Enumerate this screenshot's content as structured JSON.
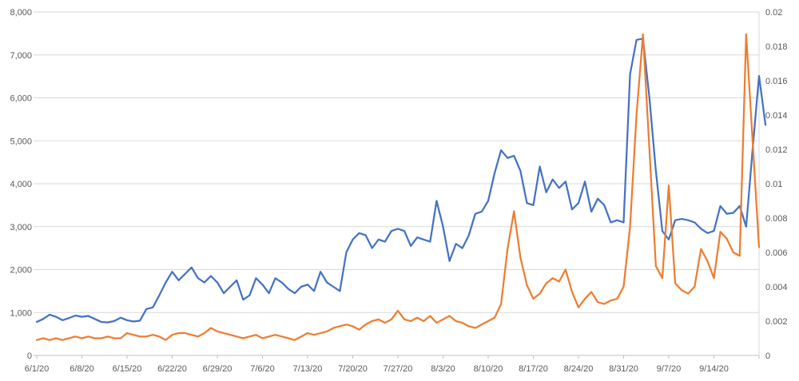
{
  "clipped_title_glyphs": "▄▄▄▄ ▄▄▄▄▄▄ ▄▄▄▄▄ ▄▄ ▄▄▄▄▄▄ ▄▄▄",
  "colors": {
    "blue_series": "#4472C4",
    "orange_series": "#ED7D31",
    "gridline": "#D9D9D9",
    "axis_line": "#BFBFBF",
    "axis_text": "#595959",
    "background": "#FFFFFF"
  },
  "chart_data": {
    "type": "line",
    "title": "",
    "legend": "none",
    "grid": "horizontal-major",
    "x_tick_labels": [
      "6/1/20",
      "6/8/20",
      "6/15/20",
      "6/22/20",
      "6/29/20",
      "7/6/20",
      "7/13/20",
      "7/20/20",
      "7/27/20",
      "8/3/20",
      "8/10/20",
      "8/17/20",
      "8/24/20",
      "8/31/20",
      "9/7/20",
      "9/14/20"
    ],
    "x_dates": [
      "6/1/20",
      "6/2/20",
      "6/3/20",
      "6/4/20",
      "6/5/20",
      "6/6/20",
      "6/7/20",
      "6/8/20",
      "6/9/20",
      "6/10/20",
      "6/11/20",
      "6/12/20",
      "6/13/20",
      "6/14/20",
      "6/15/20",
      "6/16/20",
      "6/17/20",
      "6/18/20",
      "6/19/20",
      "6/20/20",
      "6/21/20",
      "6/22/20",
      "6/23/20",
      "6/24/20",
      "6/25/20",
      "6/26/20",
      "6/27/20",
      "6/28/20",
      "6/29/20",
      "6/30/20",
      "7/1/20",
      "7/2/20",
      "7/3/20",
      "7/4/20",
      "7/5/20",
      "7/6/20",
      "7/7/20",
      "7/8/20",
      "7/9/20",
      "7/10/20",
      "7/11/20",
      "7/12/20",
      "7/13/20",
      "7/14/20",
      "7/15/20",
      "7/16/20",
      "7/17/20",
      "7/18/20",
      "7/19/20",
      "7/20/20",
      "7/21/20",
      "7/22/20",
      "7/23/20",
      "7/24/20",
      "7/25/20",
      "7/26/20",
      "7/27/20",
      "7/28/20",
      "7/29/20",
      "7/30/20",
      "7/31/20",
      "8/1/20",
      "8/2/20",
      "8/3/20",
      "8/4/20",
      "8/5/20",
      "8/6/20",
      "8/7/20",
      "8/8/20",
      "8/9/20",
      "8/10/20",
      "8/11/20",
      "8/12/20",
      "8/13/20",
      "8/14/20",
      "8/15/20",
      "8/16/20",
      "8/17/20",
      "8/18/20",
      "8/19/20",
      "8/20/20",
      "8/21/20",
      "8/22/20",
      "8/23/20",
      "8/24/20",
      "8/25/20",
      "8/26/20",
      "8/27/20",
      "8/28/20",
      "8/29/20",
      "8/30/20",
      "8/31/20",
      "9/1/20",
      "9/2/20",
      "9/3/20",
      "9/4/20",
      "9/5/20",
      "9/6/20",
      "9/7/20",
      "9/8/20",
      "9/9/20",
      "9/10/20",
      "9/11/20",
      "9/12/20",
      "9/13/20",
      "9/14/20",
      "9/15/20",
      "9/16/20",
      "9/17/20",
      "9/18/20",
      "9/19/20",
      "9/20/20",
      "9/21/20"
    ],
    "series": [
      {
        "id": "blue",
        "axis": "left",
        "color": "#4472C4",
        "values": [
          780,
          850,
          950,
          900,
          820,
          870,
          930,
          900,
          920,
          850,
          780,
          770,
          800,
          880,
          820,
          790,
          810,
          1080,
          1120,
          1400,
          1700,
          1950,
          1750,
          1900,
          2050,
          1800,
          1700,
          1850,
          1700,
          1450,
          1600,
          1750,
          1300,
          1400,
          1800,
          1650,
          1450,
          1800,
          1700,
          1550,
          1450,
          1600,
          1650,
          1500,
          1950,
          1700,
          1600,
          1500,
          2400,
          2700,
          2850,
          2800,
          2500,
          2700,
          2650,
          2900,
          2950,
          2900,
          2550,
          2750,
          2700,
          2650,
          3600,
          3000,
          2200,
          2600,
          2500,
          2800,
          3300,
          3350,
          3600,
          4250,
          4780,
          4600,
          4650,
          4300,
          3550,
          3500,
          4400,
          3800,
          4100,
          3900,
          4050,
          3400,
          3550,
          4050,
          3350,
          3650,
          3500,
          3100,
          3150,
          3100,
          6550,
          7350,
          7380,
          6000,
          4300,
          2900,
          2700,
          3150,
          3180,
          3150,
          3100,
          2950,
          2850,
          2900,
          3480,
          3300,
          3320,
          3480,
          3000,
          4800,
          6510,
          5370
        ]
      },
      {
        "id": "orange",
        "axis": "right",
        "color": "#ED7D31",
        "values": [
          0.0009,
          0.001,
          0.0009,
          0.001,
          0.0009,
          0.001,
          0.0011,
          0.001,
          0.0011,
          0.001,
          0.001,
          0.0011,
          0.001,
          0.001,
          0.0013,
          0.0012,
          0.0011,
          0.0011,
          0.0012,
          0.0011,
          0.0009,
          0.0012,
          0.0013,
          0.0013,
          0.0012,
          0.0011,
          0.0013,
          0.0016,
          0.0014,
          0.0013,
          0.0012,
          0.0011,
          0.001,
          0.0011,
          0.0012,
          0.001,
          0.0011,
          0.0012,
          0.0011,
          0.001,
          0.0009,
          0.0011,
          0.0013,
          0.0012,
          0.0013,
          0.0014,
          0.0016,
          0.0017,
          0.0018,
          0.0017,
          0.0015,
          0.0018,
          0.002,
          0.0021,
          0.0019,
          0.0021,
          0.0026,
          0.0021,
          0.002,
          0.0022,
          0.002,
          0.0023,
          0.0019,
          0.0021,
          0.0023,
          0.002,
          0.0019,
          0.0017,
          0.0016,
          0.0018,
          0.002,
          0.0022,
          0.003,
          0.0062,
          0.0084,
          0.0057,
          0.0041,
          0.0033,
          0.0036,
          0.0042,
          0.0045,
          0.0043,
          0.005,
          0.0037,
          0.0028,
          0.0033,
          0.0037,
          0.0031,
          0.003,
          0.0032,
          0.0033,
          0.004,
          0.0075,
          0.014,
          0.0187,
          0.012,
          0.0052,
          0.0045,
          0.0099,
          0.0042,
          0.0038,
          0.0036,
          0.004,
          0.0062,
          0.0055,
          0.0045,
          0.0072,
          0.0068,
          0.006,
          0.0058,
          0.0187,
          0.0125,
          0.0063
        ]
      }
    ],
    "left_axis": {
      "min": 0,
      "max": 8000,
      "tick_step": 1000,
      "labels": [
        "8,000",
        "7,000",
        "6,000",
        "5,000",
        "4,000",
        "3,000",
        "2,000",
        "1,000",
        "0"
      ]
    },
    "right_axis": {
      "min": 0,
      "max": 0.02,
      "tick_step": 0.002,
      "labels": [
        "0.02",
        "0.018",
        "0.016",
        "0.014",
        "0.012",
        "0.01",
        "0.008",
        "0.006",
        "0.004",
        "0.002",
        "0"
      ]
    }
  }
}
